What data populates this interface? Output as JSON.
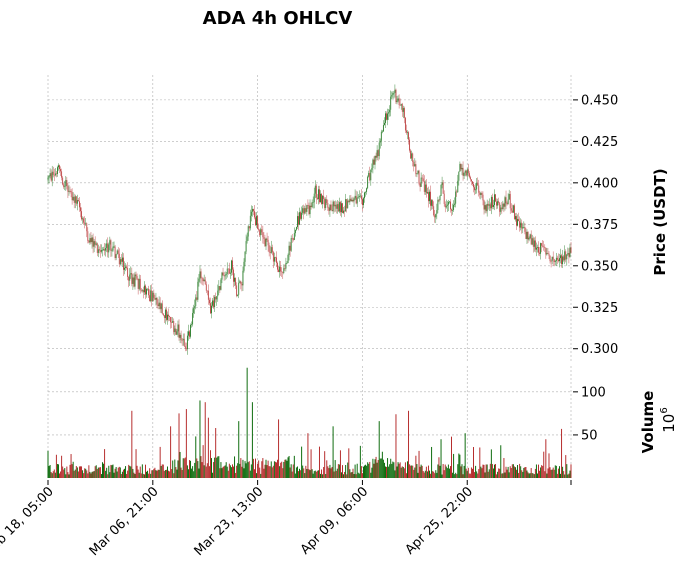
{
  "chart_data": {
    "type": "candlestick",
    "title": "ADA 4h OHLCV",
    "x_tick_labels": [
      "Feb 18, 05:00",
      "Mar 06, 21:00",
      "Mar 23, 13:00",
      "Apr 09, 06:00",
      "Apr 25, 22:00"
    ],
    "x_tick_positions": [
      0,
      100,
      200,
      300,
      400
    ],
    "bar_count": 500,
    "price_panel": {
      "ylabel": "Price (USDT)",
      "ylim": [
        0.292,
        0.465
      ],
      "yticks": [
        0.3,
        0.325,
        0.35,
        0.375,
        0.4,
        0.425,
        0.45
      ],
      "ytick_labels": [
        "0.300",
        "0.325",
        "0.350",
        "0.375",
        "0.400",
        "0.425",
        "0.450"
      ],
      "close_path": [
        [
          0,
          0.402
        ],
        [
          10,
          0.408
        ],
        [
          20,
          0.395
        ],
        [
          30,
          0.385
        ],
        [
          40,
          0.365
        ],
        [
          50,
          0.36
        ],
        [
          60,
          0.362
        ],
        [
          70,
          0.352
        ],
        [
          80,
          0.342
        ],
        [
          90,
          0.338
        ],
        [
          100,
          0.33
        ],
        [
          110,
          0.322
        ],
        [
          125,
          0.31
        ],
        [
          132,
          0.302
        ],
        [
          138,
          0.318
        ],
        [
          145,
          0.345
        ],
        [
          150,
          0.338
        ],
        [
          155,
          0.322
        ],
        [
          160,
          0.332
        ],
        [
          167,
          0.345
        ],
        [
          175,
          0.35
        ],
        [
          180,
          0.335
        ],
        [
          185,
          0.342
        ],
        [
          190,
          0.37
        ],
        [
          195,
          0.383
        ],
        [
          200,
          0.375
        ],
        [
          205,
          0.365
        ],
        [
          212,
          0.36
        ],
        [
          220,
          0.35
        ],
        [
          225,
          0.345
        ],
        [
          232,
          0.365
        ],
        [
          240,
          0.38
        ],
        [
          250,
          0.385
        ],
        [
          255,
          0.395
        ],
        [
          262,
          0.39
        ],
        [
          270,
          0.385
        ],
        [
          280,
          0.385
        ],
        [
          290,
          0.39
        ],
        [
          300,
          0.388
        ],
        [
          305,
          0.4
        ],
        [
          315,
          0.42
        ],
        [
          322,
          0.44
        ],
        [
          330,
          0.455
        ],
        [
          338,
          0.445
        ],
        [
          345,
          0.42
        ],
        [
          352,
          0.405
        ],
        [
          360,
          0.395
        ],
        [
          365,
          0.39
        ],
        [
          370,
          0.38
        ],
        [
          375,
          0.4
        ],
        [
          380,
          0.385
        ],
        [
          387,
          0.385
        ],
        [
          393,
          0.41
        ],
        [
          400,
          0.405
        ],
        [
          410,
          0.395
        ],
        [
          418,
          0.385
        ],
        [
          425,
          0.39
        ],
        [
          432,
          0.385
        ],
        [
          440,
          0.39
        ],
        [
          448,
          0.375
        ],
        [
          455,
          0.37
        ],
        [
          462,
          0.364
        ],
        [
          470,
          0.36
        ],
        [
          478,
          0.358
        ],
        [
          484,
          0.35
        ],
        [
          490,
          0.355
        ],
        [
          499,
          0.36
        ]
      ],
      "up_color": "#006400",
      "down_color": "#b22222"
    },
    "volume_panel": {
      "ylabel": "Volume",
      "scale_label": "10",
      "scale_exponent": "6",
      "ylim": [
        0,
        130
      ],
      "yticks": [
        50,
        100
      ],
      "ytick_labels": [
        "50",
        "100"
      ],
      "notable_spikes": [
        [
          80,
          78
        ],
        [
          117,
          60
        ],
        [
          125,
          75
        ],
        [
          132,
          80
        ],
        [
          145,
          90
        ],
        [
          150,
          88
        ],
        [
          153,
          70
        ],
        [
          160,
          58
        ],
        [
          182,
          66
        ],
        [
          190,
          128
        ],
        [
          195,
          88
        ],
        [
          220,
          68
        ],
        [
          248,
          52
        ],
        [
          272,
          60
        ],
        [
          316,
          66
        ],
        [
          332,
          74
        ],
        [
          344,
          78
        ],
        [
          375,
          45
        ],
        [
          385,
          48
        ],
        [
          398,
          52
        ],
        [
          432,
          38
        ],
        [
          475,
          45
        ],
        [
          490,
          57
        ]
      ]
    },
    "grid": true
  }
}
